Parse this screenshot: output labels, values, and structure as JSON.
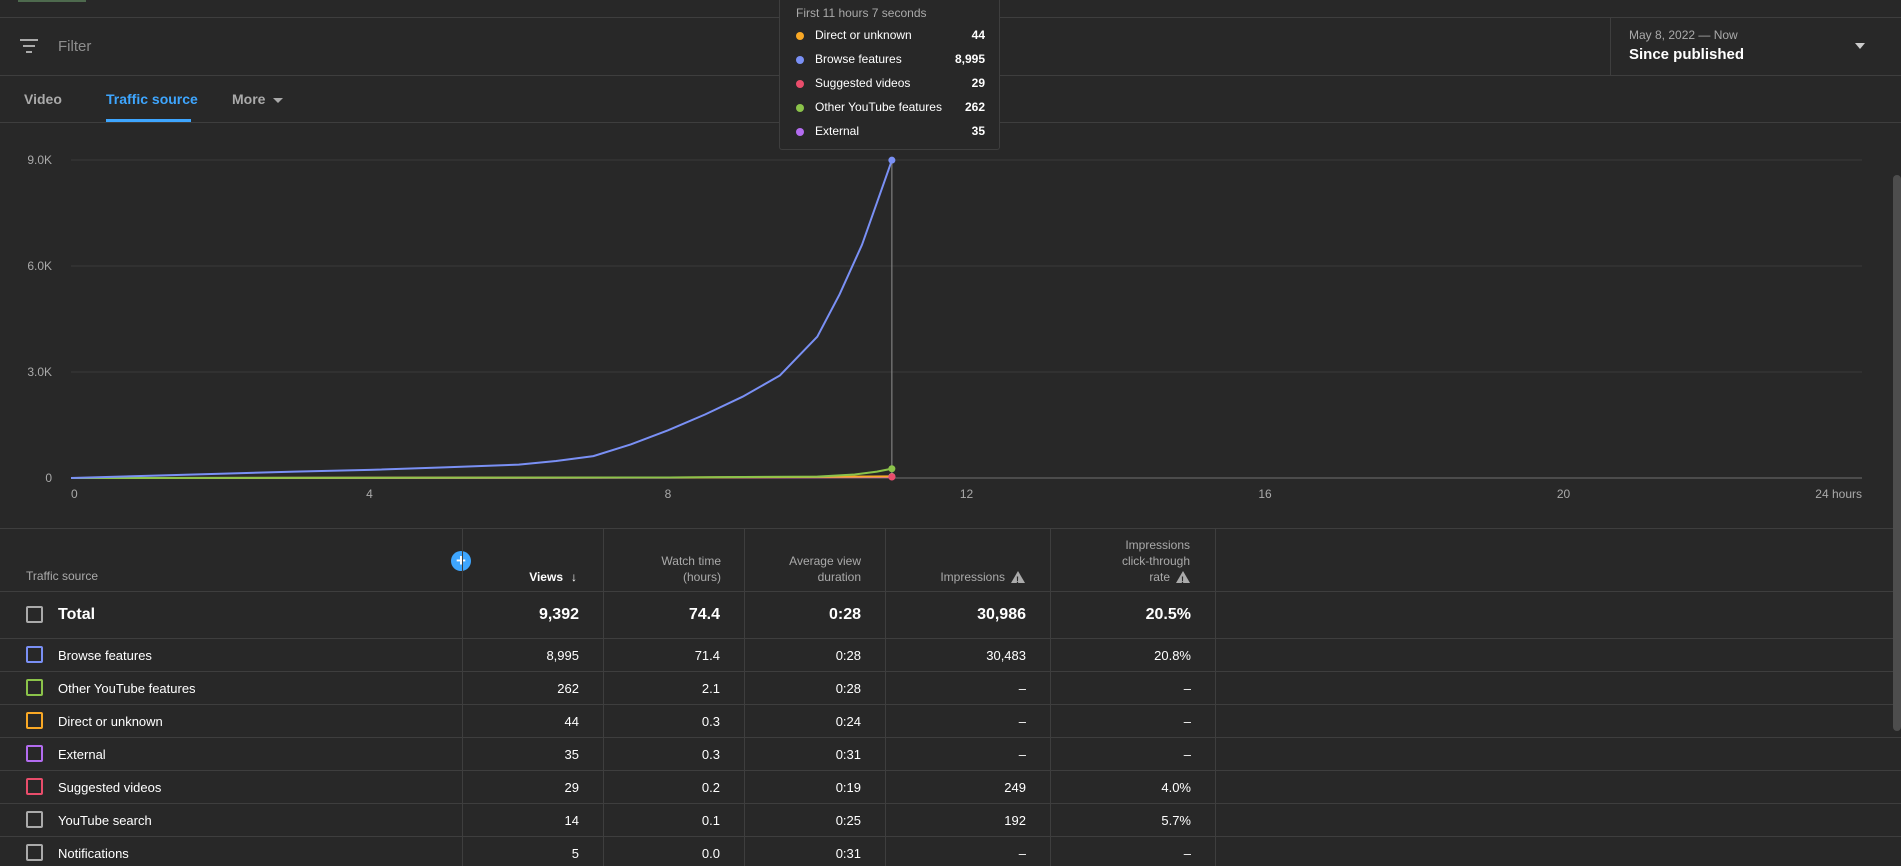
{
  "filter": {
    "placeholder": "Filter"
  },
  "date_range": {
    "range": "May 8, 2022 — Now",
    "label": "Since published"
  },
  "tabs": [
    {
      "label": "Video"
    },
    {
      "label": "Traffic source"
    },
    {
      "label": "More"
    }
  ],
  "tooltip": {
    "title": "First 11 hours 7 seconds",
    "items": [
      {
        "label": "Direct or unknown",
        "value": "44",
        "color": "#f9a825"
      },
      {
        "label": "Browse features",
        "value": "8,995",
        "color": "#7a90f5"
      },
      {
        "label": "Suggested videos",
        "value": "29",
        "color": "#e94d6b"
      },
      {
        "label": "Other YouTube features",
        "value": "262",
        "color": "#8bc34a"
      },
      {
        "label": "External",
        "value": "35",
        "color": "#b36cf0"
      }
    ]
  },
  "chart_data": {
    "type": "line",
    "x_ticks": [
      "0",
      "4",
      "8",
      "12",
      "16",
      "20",
      "24 hours"
    ],
    "y_ticks": [
      "0",
      "3.0K",
      "6.0K",
      "9.0K"
    ],
    "xlim": [
      0,
      24
    ],
    "ylim": [
      0,
      9000
    ],
    "grid": true,
    "series": [
      {
        "name": "Browse features",
        "color": "#7a90f5",
        "x": [
          0,
          1,
          2,
          3,
          4,
          5,
          6,
          6.5,
          7,
          7.5,
          8,
          8.5,
          9,
          9.5,
          10,
          10.3,
          10.6,
          10.8,
          11
        ],
        "y": [
          0,
          60,
          120,
          180,
          230,
          300,
          380,
          480,
          620,
          950,
          1350,
          1800,
          2300,
          2900,
          4000,
          5200,
          6600,
          7800,
          8995
        ]
      },
      {
        "name": "Other YouTube features",
        "color": "#8bc34a",
        "x": [
          0,
          4,
          8,
          10,
          10.5,
          10.8,
          11
        ],
        "y": [
          0,
          5,
          15,
          40,
          100,
          180,
          262
        ]
      },
      {
        "name": "Direct or unknown",
        "color": "#f9a825",
        "x": [
          0,
          4,
          8,
          10,
          11
        ],
        "y": [
          0,
          5,
          15,
          30,
          44
        ]
      },
      {
        "name": "External",
        "color": "#b36cf0",
        "x": [
          0,
          4,
          8,
          10,
          11
        ],
        "y": [
          0,
          4,
          12,
          25,
          35
        ]
      },
      {
        "name": "Suggested videos",
        "color": "#e94d6b",
        "x": [
          0,
          4,
          8,
          10,
          11
        ],
        "y": [
          0,
          3,
          10,
          20,
          29
        ]
      }
    ],
    "cursor_x": 11
  },
  "table": {
    "headers": {
      "source": "Traffic source",
      "views": "Views",
      "watch_time_1": "Watch time",
      "watch_time_2": "(hours)",
      "avg_1": "Average view",
      "avg_2": "duration",
      "impressions": "Impressions",
      "ctr_1": "Impressions",
      "ctr_2": "click-through",
      "ctr_3": "rate"
    },
    "total": {
      "label": "Total",
      "views": "9,392",
      "watch": "74.4",
      "avg": "0:28",
      "impr": "30,986",
      "ctr": "20.5%"
    },
    "rows": [
      {
        "label": "Browse features",
        "views": "8,995",
        "watch": "71.4",
        "avg": "0:28",
        "impr": "30,483",
        "ctr": "20.8%",
        "color": "#7a90f5"
      },
      {
        "label": "Other YouTube features",
        "views": "262",
        "watch": "2.1",
        "avg": "0:28",
        "impr": "–",
        "ctr": "–",
        "color": "#8bc34a"
      },
      {
        "label": "Direct or unknown",
        "views": "44",
        "watch": "0.3",
        "avg": "0:24",
        "impr": "–",
        "ctr": "–",
        "color": "#f9a825"
      },
      {
        "label": "External",
        "views": "35",
        "watch": "0.3",
        "avg": "0:31",
        "impr": "–",
        "ctr": "–",
        "color": "#b36cf0"
      },
      {
        "label": "Suggested videos",
        "views": "29",
        "watch": "0.2",
        "avg": "0:19",
        "impr": "249",
        "ctr": "4.0%",
        "color": "#e94d6b"
      },
      {
        "label": "YouTube search",
        "views": "14",
        "watch": "0.1",
        "avg": "0:25",
        "impr": "192",
        "ctr": "5.7%",
        "color": "#aaaaaa"
      },
      {
        "label": "Notifications",
        "views": "5",
        "watch": "0.0",
        "avg": "0:31",
        "impr": "–",
        "ctr": "–",
        "color": "#aaaaaa"
      }
    ]
  }
}
